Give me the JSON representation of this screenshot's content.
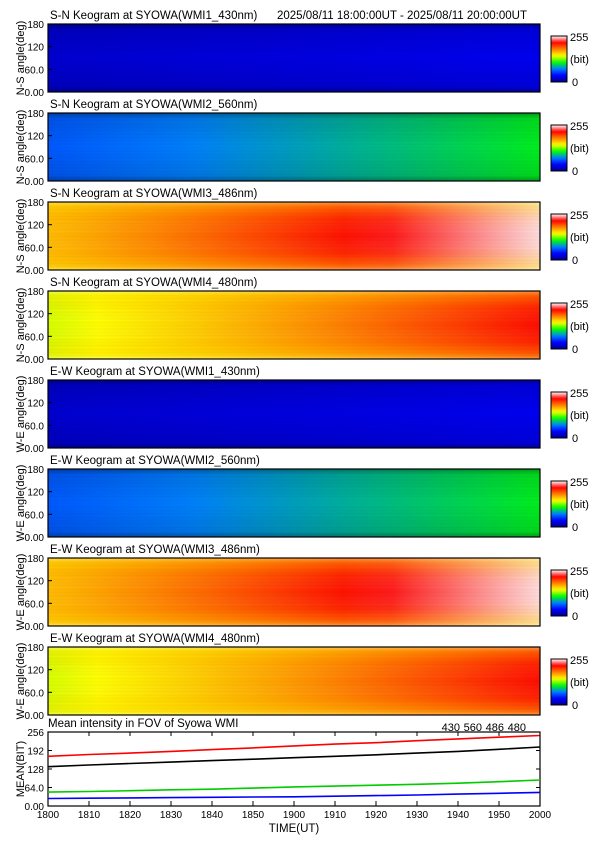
{
  "header": {
    "time_range": "2025/08/11 18:00:00UT - 2025/08/11 20:00:00UT"
  },
  "colors": {
    "scale": [
      "#00008c",
      "#0000ff",
      "#0080ff",
      "#00ff00",
      "#ffff00",
      "#ff8000",
      "#ff0000",
      "#ffffff"
    ],
    "line_430": "#0000ff",
    "line_560": "#00cc00",
    "line_486": "#ff0000",
    "line_480": "#000000"
  },
  "colorbar": {
    "max_label": "255",
    "unit_label": "(bit)",
    "min_label": "0"
  },
  "chart_data": [
    {
      "type": "heatmap",
      "title": "S-N Keogram at SYOWA(WMI1_430nm)",
      "ylabel": "N-S angle(deg)",
      "yticks": [
        "180",
        "120",
        "60.0",
        "0.00"
      ],
      "ylim": [
        0,
        180
      ],
      "xlim": [
        "1800",
        "2000"
      ],
      "intensity_start": 22,
      "intensity_end": 32,
      "edge_profile": "flat",
      "clim": [
        0,
        255
      ]
    },
    {
      "type": "heatmap",
      "title": "S-N Keogram at SYOWA(WMI2_560nm)",
      "ylabel": "N-S angle(deg)",
      "yticks": [
        "180",
        "120",
        "60.0",
        "0.00"
      ],
      "ylim": [
        0,
        180
      ],
      "xlim": [
        "1800",
        "2000"
      ],
      "intensity_start": 62,
      "intensity_end": 105,
      "edge_profile": "flat",
      "clim": [
        0,
        255
      ]
    },
    {
      "type": "heatmap",
      "title": "S-N Keogram at SYOWA(WMI3_486nm)",
      "ylabel": "N-S angle(deg)",
      "yticks": [
        "180",
        "120",
        "60.0",
        "0.00"
      ],
      "ylim": [
        0,
        180
      ],
      "xlim": [
        "1800",
        "2000"
      ],
      "intensity_start": 165,
      "intensity_end": 250,
      "edge_profile": "dome",
      "clim": [
        0,
        255
      ]
    },
    {
      "type": "heatmap",
      "title": "S-N Keogram at SYOWA(WMI4_480nm)",
      "ylabel": "N-S angle(deg)",
      "yticks": [
        "180",
        "120",
        "60.0",
        "0.00"
      ],
      "ylim": [
        0,
        180
      ],
      "xlim": [
        "1800",
        "2000"
      ],
      "intensity_start": 140,
      "intensity_end": 215,
      "edge_profile": "dome",
      "clim": [
        0,
        255
      ]
    },
    {
      "type": "heatmap",
      "title": "E-W Keogram at SYOWA(WMI1_430nm)",
      "ylabel": "W-E angle(deg)",
      "yticks": [
        "180",
        "120",
        "60.0",
        "0.00"
      ],
      "ylim": [
        0,
        180
      ],
      "xlim": [
        "1800",
        "2000"
      ],
      "intensity_start": 22,
      "intensity_end": 32,
      "edge_profile": "flat",
      "clim": [
        0,
        255
      ]
    },
    {
      "type": "heatmap",
      "title": "E-W Keogram at SYOWA(WMI2_560nm)",
      "ylabel": "W-E angle(deg)",
      "yticks": [
        "180",
        "120",
        "60.0",
        "0.00"
      ],
      "ylim": [
        0,
        180
      ],
      "xlim": [
        "1800",
        "2000"
      ],
      "intensity_start": 62,
      "intensity_end": 105,
      "edge_profile": "flat",
      "clim": [
        0,
        255
      ]
    },
    {
      "type": "heatmap",
      "title": "E-W Keogram at SYOWA(WMI3_486nm)",
      "ylabel": "W-E angle(deg)",
      "yticks": [
        "180",
        "120",
        "60.0",
        "0.00"
      ],
      "ylim": [
        0,
        180
      ],
      "xlim": [
        "1800",
        "2000"
      ],
      "intensity_start": 165,
      "intensity_end": 250,
      "edge_profile": "dome",
      "clim": [
        0,
        255
      ]
    },
    {
      "type": "heatmap",
      "title": "E-W Keogram at SYOWA(WMI4_480nm)",
      "ylabel": "W-E angle(deg)",
      "yticks": [
        "180",
        "120",
        "60.0",
        "0.00"
      ],
      "ylim": [
        0,
        180
      ],
      "xlim": [
        "1800",
        "2000"
      ],
      "intensity_start": 140,
      "intensity_end": 215,
      "edge_profile": "dome",
      "clim": [
        0,
        255
      ]
    },
    {
      "type": "line",
      "title": "Mean intensity in FOV of Syowa WMI",
      "xlabel": "TIME(UT)",
      "ylabel": "MEAN(BIT)",
      "x_ticks": [
        "1800",
        "1810",
        "1820",
        "1830",
        "1840",
        "1850",
        "1900",
        "1910",
        "1920",
        "1930",
        "1940",
        "1950",
        "2000"
      ],
      "yticks": [
        "256",
        "192",
        "128",
        "64.0",
        "0.00"
      ],
      "ylim": [
        0,
        256
      ],
      "x": [
        "18:00",
        "18:10",
        "18:20",
        "18:30",
        "18:40",
        "18:50",
        "19:00",
        "19:10",
        "19:20",
        "19:30",
        "19:40",
        "19:50",
        "20:00"
      ],
      "series": [
        {
          "name": "430",
          "color": "#0000ff",
          "values": [
            26,
            27,
            28,
            29,
            30,
            31,
            32,
            34,
            36,
            38,
            41,
            44,
            47
          ]
        },
        {
          "name": "560",
          "color": "#00cc00",
          "values": [
            48,
            50,
            53,
            56,
            58,
            62,
            66,
            69,
            72,
            75,
            79,
            84,
            90
          ]
        },
        {
          "name": "486",
          "color": "#ff0000",
          "values": [
            172,
            178,
            183,
            189,
            195,
            201,
            208,
            214,
            219,
            226,
            232,
            238,
            244
          ]
        },
        {
          "name": "480",
          "color": "#000000",
          "values": [
            136,
            142,
            147,
            152,
            157,
            162,
            167,
            172,
            177,
            183,
            189,
            196,
            204
          ]
        }
      ]
    }
  ]
}
